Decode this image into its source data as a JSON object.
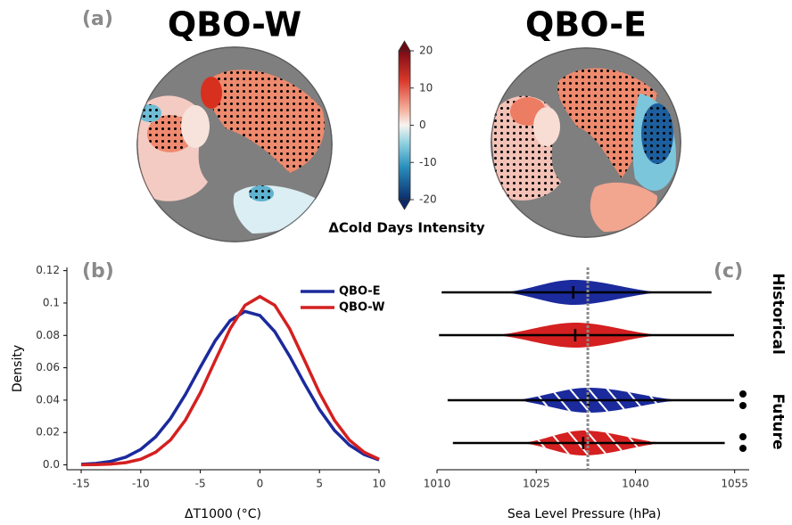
{
  "chart_data": [
    {
      "type": "map",
      "panel_label": "(a)",
      "titles": [
        "QBO-W",
        "QBO-E"
      ],
      "colorbar": {
        "label": "ΔCold Days Intensity",
        "clim": [
          -20,
          20
        ],
        "ticks": [
          20,
          10,
          0,
          -10,
          -20
        ]
      }
    },
    {
      "type": "line",
      "panel_label": "(b)",
      "xlabel": "ΔT1000 (°C)",
      "ylabel": "Density",
      "x": [
        -15,
        -13.75,
        -12.5,
        -11.25,
        -10,
        -8.75,
        -7.5,
        -6.25,
        -5,
        -3.75,
        -2.5,
        -1.25,
        0,
        1.25,
        2.5,
        3.75,
        5,
        6.25,
        7.5,
        8.75,
        10
      ],
      "xlim": [
        -16.2,
        10
      ],
      "xticks": [
        -15,
        -10,
        -5,
        0,
        5,
        10
      ],
      "ylim": [
        -0.003,
        0.122
      ],
      "yticks": [
        {
          "value": 0,
          "label": "0.0"
        },
        0.02,
        0.04,
        0.06,
        0.08,
        0.1,
        0.12
      ],
      "legend": "upper right",
      "series": [
        {
          "name": "QBO-E",
          "color": "#1b2a9c",
          "values": [
            0.0004,
            0.0009,
            0.0022,
            0.0048,
            0.0096,
            0.0173,
            0.0287,
            0.0435,
            0.0604,
            0.0767,
            0.0891,
            0.0948,
            0.0923,
            0.0823,
            0.0671,
            0.0501,
            0.0342,
            0.0214,
            0.0123,
            0.0064,
            0.0031
          ]
        },
        {
          "name": "QBO-W",
          "color": "#d42020",
          "values": [
            0.0001,
            0.0002,
            0.0005,
            0.0014,
            0.0035,
            0.0078,
            0.0154,
            0.0277,
            0.0445,
            0.0645,
            0.0841,
            0.0986,
            0.104,
            0.0986,
            0.0841,
            0.0645,
            0.0445,
            0.0277,
            0.0154,
            0.0078,
            0.0035
          ]
        }
      ]
    },
    {
      "type": "violin",
      "panel_label": "(c)",
      "xlabel": "Sea Level Pressure (hPa)",
      "xlim": [
        1010,
        1057.2
      ],
      "xticks": [
        1010,
        1025,
        1040,
        1055
      ],
      "groups": [
        "Historical",
        "Future"
      ],
      "hatched": [
        false,
        true
      ],
      "reference_line": 1032.8,
      "series": [
        {
          "color": "#1b2a9c",
          "min": [
            1010.7,
            1011.6
          ],
          "max": [
            1051.5,
            1054.9
          ],
          "median": [
            1030.6,
            1032.9
          ],
          "kde_low": [
            1019.4,
            1020.8
          ],
          "kde_high": [
            1044.8,
            1048
          ]
        },
        {
          "color": "#d42020",
          "min": [
            1010.3,
            1012.4
          ],
          "max": [
            1054.9,
            1053.5
          ],
          "median": [
            1030.9,
            1032.1
          ],
          "kde_low": [
            1017.8,
            1022.1
          ],
          "kde_high": [
            1044.8,
            1045.3
          ]
        }
      ]
    }
  ]
}
